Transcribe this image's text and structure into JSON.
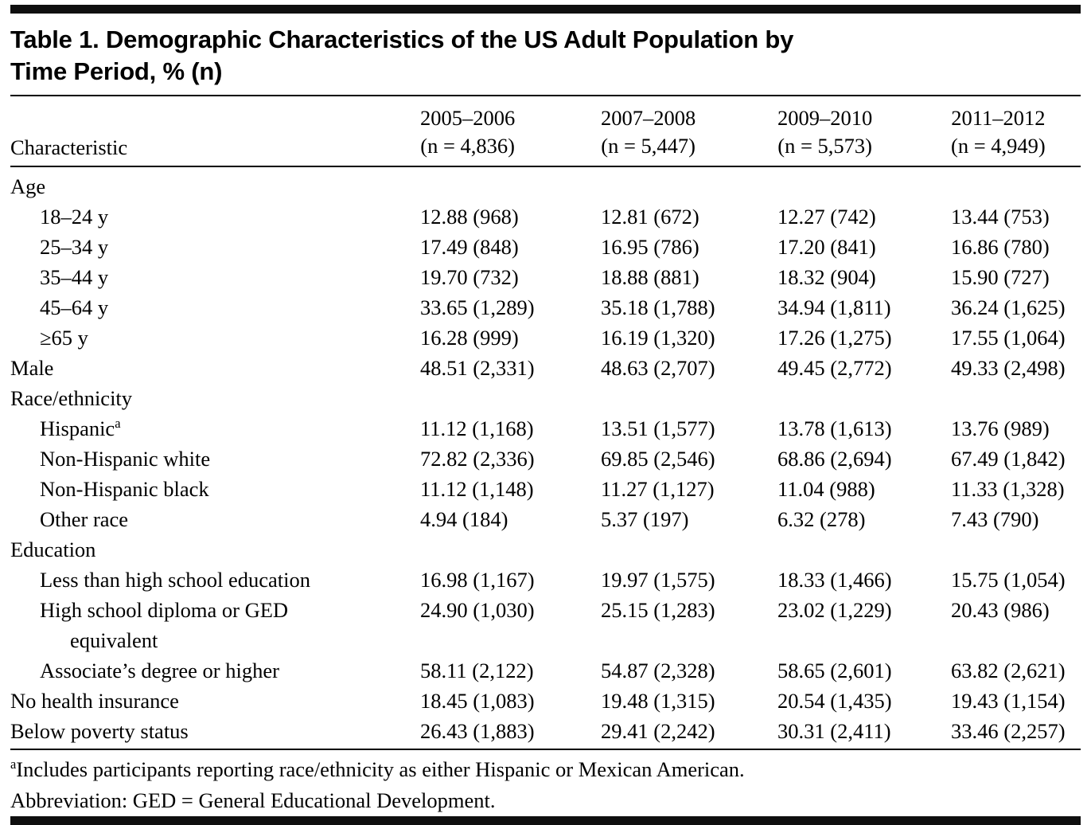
{
  "title": {
    "line1": "Table 1. Demographic Characteristics of the US Adult Population by",
    "line2": "Time Period, % (n)"
  },
  "table": {
    "col_header_label": "Characteristic",
    "columns": [
      {
        "period": "2005–2006",
        "n": "(n = 4,836)"
      },
      {
        "period": "2007–2008",
        "n": "(n = 5,447)"
      },
      {
        "period": "2009–2010",
        "n": "(n = 5,573)"
      },
      {
        "period": "2011–2012",
        "n": "(n = 4,949)"
      }
    ],
    "rows": [
      {
        "label": "Age",
        "type": "section",
        "values": [
          "",
          "",
          "",
          ""
        ]
      },
      {
        "label": "18–24 y",
        "type": "sub",
        "values": [
          "12.88 (968)",
          "12.81 (672)",
          "12.27 (742)",
          "13.44 (753)"
        ]
      },
      {
        "label": "25–34 y",
        "type": "sub",
        "values": [
          "17.49 (848)",
          "16.95 (786)",
          "17.20 (841)",
          "16.86 (780)"
        ]
      },
      {
        "label": "35–44 y",
        "type": "sub",
        "values": [
          "19.70 (732)",
          "18.88 (881)",
          "18.32 (904)",
          "15.90 (727)"
        ]
      },
      {
        "label": "45–64 y",
        "type": "sub",
        "values": [
          "33.65 (1,289)",
          "35.18 (1,788)",
          "34.94 (1,811)",
          "36.24 (1,625)"
        ]
      },
      {
        "label": "≥65 y",
        "type": "sub",
        "values": [
          "16.28 (999)",
          "16.19 (1,320)",
          "17.26 (1,275)",
          "17.55 (1,064)"
        ]
      },
      {
        "label": "Male",
        "type": "section",
        "values": [
          "48.51 (2,331)",
          "48.63 (2,707)",
          "49.45 (2,772)",
          "49.33 (2,498)"
        ]
      },
      {
        "label": "Race/ethnicity",
        "type": "section",
        "values": [
          "",
          "",
          "",
          ""
        ]
      },
      {
        "label": "Hispanic",
        "sup": "a",
        "type": "sub",
        "values": [
          "11.12 (1,168)",
          "13.51 (1,577)",
          "13.78 (1,613)",
          "13.76 (989)"
        ]
      },
      {
        "label": "Non-Hispanic white",
        "type": "sub",
        "values": [
          "72.82 (2,336)",
          "69.85 (2,546)",
          "68.86 (2,694)",
          "67.49 (1,842)"
        ]
      },
      {
        "label": "Non-Hispanic black",
        "type": "sub",
        "values": [
          "11.12 (1,148)",
          "11.27 (1,127)",
          "11.04 (988)",
          "11.33 (1,328)"
        ]
      },
      {
        "label": "Other race",
        "type": "sub",
        "values": [
          "4.94 (184)",
          "5.37 (197)",
          "6.32 (278)",
          "7.43 (790)"
        ]
      },
      {
        "label": "Education",
        "type": "section",
        "values": [
          "",
          "",
          "",
          ""
        ]
      },
      {
        "label": "Less than high school education",
        "type": "sub",
        "values": [
          "16.98 (1,167)",
          "19.97 (1,575)",
          "18.33 (1,466)",
          "15.75 (1,054)"
        ]
      },
      {
        "label": "High school diploma or GED",
        "label2": "equivalent",
        "type": "sub",
        "values": [
          "24.90 (1,030)",
          "25.15 (1,283)",
          "23.02 (1,229)",
          "20.43 (986)"
        ]
      },
      {
        "label": "Associate’s degree or higher",
        "type": "sub",
        "values": [
          "58.11 (2,122)",
          "54.87 (2,328)",
          "58.65 (2,601)",
          "63.82 (2,621)"
        ]
      },
      {
        "label": "No health insurance",
        "type": "section",
        "values": [
          "18.45 (1,083)",
          "19.48 (1,315)",
          "20.54 (1,435)",
          "19.43 (1,154)"
        ]
      },
      {
        "label": "Below poverty status",
        "type": "section",
        "values": [
          "26.43 (1,883)",
          "29.41 (2,242)",
          "30.31 (2,411)",
          "33.46 (2,257)"
        ]
      }
    ]
  },
  "footnotes": [
    {
      "sup": "a",
      "text": "Includes participants reporting race/ethnicity as either Hispanic or Mexican American."
    },
    {
      "sup": "",
      "text": "Abbreviation: GED = General Educational Development."
    }
  ]
}
